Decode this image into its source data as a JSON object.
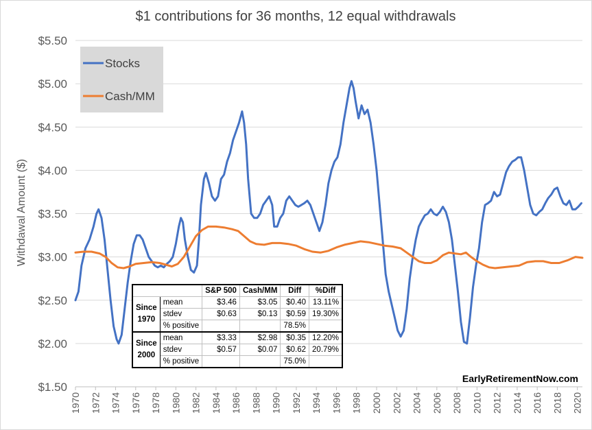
{
  "chart_data": {
    "type": "line",
    "title": "$1 contributions for 36 months, 12 equal withdrawals",
    "xlabel": "",
    "ylabel": "Withdawal Amount ($)",
    "xlim": [
      1970,
      2020.5
    ],
    "ylim": [
      1.5,
      5.5
    ],
    "yticks": [
      "$1.50",
      "$2.00",
      "$2.50",
      "$3.00",
      "$3.50",
      "$4.00",
      "$4.50",
      "$5.00",
      "$5.50"
    ],
    "xticks": [
      "1970",
      "1972",
      "1974",
      "1976",
      "1978",
      "1980",
      "1982",
      "1984",
      "1986",
      "1988",
      "1990",
      "1992",
      "1994",
      "1996",
      "1998",
      "2000",
      "2002",
      "2004",
      "2006",
      "2008",
      "2010",
      "2012",
      "2014",
      "2016",
      "2018",
      "2020"
    ],
    "grid": true,
    "legend_position": "top-left",
    "series": [
      {
        "name": "Stocks",
        "color": "#4472C4",
        "points": [
          [
            1970.0,
            2.5
          ],
          [
            1970.3,
            2.6
          ],
          [
            1970.6,
            2.9
          ],
          [
            1971.0,
            3.1
          ],
          [
            1971.4,
            3.2
          ],
          [
            1971.8,
            3.35
          ],
          [
            1972.1,
            3.5
          ],
          [
            1972.3,
            3.55
          ],
          [
            1972.6,
            3.45
          ],
          [
            1972.9,
            3.2
          ],
          [
            1973.2,
            2.85
          ],
          [
            1973.5,
            2.5
          ],
          [
            1973.8,
            2.2
          ],
          [
            1974.1,
            2.05
          ],
          [
            1974.3,
            2.0
          ],
          [
            1974.6,
            2.1
          ],
          [
            1974.9,
            2.4
          ],
          [
            1975.2,
            2.7
          ],
          [
            1975.5,
            2.95
          ],
          [
            1975.8,
            3.15
          ],
          [
            1976.1,
            3.25
          ],
          [
            1976.4,
            3.25
          ],
          [
            1976.7,
            3.2
          ],
          [
            1977.0,
            3.1
          ],
          [
            1977.3,
            3.0
          ],
          [
            1977.6,
            2.95
          ],
          [
            1977.9,
            2.9
          ],
          [
            1978.2,
            2.88
          ],
          [
            1978.5,
            2.9
          ],
          [
            1978.8,
            2.88
          ],
          [
            1979.1,
            2.92
          ],
          [
            1979.4,
            2.95
          ],
          [
            1979.7,
            3.0
          ],
          [
            1980.0,
            3.15
          ],
          [
            1980.3,
            3.35
          ],
          [
            1980.5,
            3.45
          ],
          [
            1980.7,
            3.4
          ],
          [
            1980.9,
            3.2
          ],
          [
            1981.2,
            3.0
          ],
          [
            1981.5,
            2.85
          ],
          [
            1981.8,
            2.82
          ],
          [
            1982.1,
            2.9
          ],
          [
            1982.3,
            3.2
          ],
          [
            1982.5,
            3.6
          ],
          [
            1982.8,
            3.9
          ],
          [
            1983.0,
            3.97
          ],
          [
            1983.3,
            3.85
          ],
          [
            1983.6,
            3.7
          ],
          [
            1983.9,
            3.65
          ],
          [
            1984.2,
            3.7
          ],
          [
            1984.5,
            3.9
          ],
          [
            1984.8,
            3.95
          ],
          [
            1985.1,
            4.1
          ],
          [
            1985.4,
            4.2
          ],
          [
            1985.7,
            4.35
          ],
          [
            1986.0,
            4.45
          ],
          [
            1986.3,
            4.55
          ],
          [
            1986.6,
            4.68
          ],
          [
            1986.8,
            4.55
          ],
          [
            1987.0,
            4.3
          ],
          [
            1987.2,
            3.9
          ],
          [
            1987.5,
            3.5
          ],
          [
            1987.8,
            3.45
          ],
          [
            1988.1,
            3.45
          ],
          [
            1988.4,
            3.5
          ],
          [
            1988.7,
            3.6
          ],
          [
            1989.0,
            3.65
          ],
          [
            1989.3,
            3.7
          ],
          [
            1989.6,
            3.6
          ],
          [
            1989.8,
            3.35
          ],
          [
            1990.1,
            3.35
          ],
          [
            1990.4,
            3.45
          ],
          [
            1990.7,
            3.5
          ],
          [
            1991.0,
            3.65
          ],
          [
            1991.3,
            3.7
          ],
          [
            1991.6,
            3.65
          ],
          [
            1991.9,
            3.6
          ],
          [
            1992.2,
            3.58
          ],
          [
            1992.5,
            3.6
          ],
          [
            1992.8,
            3.62
          ],
          [
            1993.1,
            3.65
          ],
          [
            1993.4,
            3.6
          ],
          [
            1993.7,
            3.5
          ],
          [
            1994.0,
            3.4
          ],
          [
            1994.3,
            3.3
          ],
          [
            1994.6,
            3.4
          ],
          [
            1994.9,
            3.6
          ],
          [
            1995.2,
            3.85
          ],
          [
            1995.5,
            4.0
          ],
          [
            1995.8,
            4.1
          ],
          [
            1996.1,
            4.15
          ],
          [
            1996.4,
            4.3
          ],
          [
            1996.7,
            4.55
          ],
          [
            1997.0,
            4.75
          ],
          [
            1997.3,
            4.95
          ],
          [
            1997.5,
            5.03
          ],
          [
            1997.7,
            4.95
          ],
          [
            1997.9,
            4.8
          ],
          [
            1998.2,
            4.6
          ],
          [
            1998.5,
            4.75
          ],
          [
            1998.8,
            4.65
          ],
          [
            1999.1,
            4.7
          ],
          [
            1999.4,
            4.55
          ],
          [
            1999.7,
            4.3
          ],
          [
            2000.0,
            4.0
          ],
          [
            2000.3,
            3.6
          ],
          [
            2000.6,
            3.2
          ],
          [
            2000.9,
            2.8
          ],
          [
            2001.2,
            2.6
          ],
          [
            2001.5,
            2.45
          ],
          [
            2001.8,
            2.3
          ],
          [
            2002.1,
            2.15
          ],
          [
            2002.4,
            2.08
          ],
          [
            2002.7,
            2.15
          ],
          [
            2003.0,
            2.4
          ],
          [
            2003.3,
            2.75
          ],
          [
            2003.6,
            3.0
          ],
          [
            2003.9,
            3.2
          ],
          [
            2004.2,
            3.35
          ],
          [
            2004.5,
            3.42
          ],
          [
            2004.8,
            3.48
          ],
          [
            2005.1,
            3.5
          ],
          [
            2005.4,
            3.55
          ],
          [
            2005.7,
            3.5
          ],
          [
            2006.0,
            3.48
          ],
          [
            2006.3,
            3.52
          ],
          [
            2006.6,
            3.58
          ],
          [
            2006.9,
            3.52
          ],
          [
            2007.2,
            3.4
          ],
          [
            2007.5,
            3.2
          ],
          [
            2007.8,
            2.9
          ],
          [
            2008.1,
            2.6
          ],
          [
            2008.4,
            2.25
          ],
          [
            2008.7,
            2.02
          ],
          [
            2009.0,
            2.0
          ],
          [
            2009.3,
            2.3
          ],
          [
            2009.6,
            2.65
          ],
          [
            2009.9,
            2.9
          ],
          [
            2010.2,
            3.1
          ],
          [
            2010.5,
            3.4
          ],
          [
            2010.8,
            3.6
          ],
          [
            2011.1,
            3.62
          ],
          [
            2011.4,
            3.65
          ],
          [
            2011.7,
            3.75
          ],
          [
            2012.0,
            3.7
          ],
          [
            2012.3,
            3.72
          ],
          [
            2012.6,
            3.85
          ],
          [
            2012.9,
            3.98
          ],
          [
            2013.2,
            4.05
          ],
          [
            2013.5,
            4.1
          ],
          [
            2013.8,
            4.12
          ],
          [
            2014.1,
            4.15
          ],
          [
            2014.4,
            4.15
          ],
          [
            2014.7,
            4.0
          ],
          [
            2015.0,
            3.8
          ],
          [
            2015.3,
            3.6
          ],
          [
            2015.6,
            3.5
          ],
          [
            2015.9,
            3.48
          ],
          [
            2016.2,
            3.52
          ],
          [
            2016.5,
            3.55
          ],
          [
            2016.8,
            3.62
          ],
          [
            2017.1,
            3.68
          ],
          [
            2017.4,
            3.72
          ],
          [
            2017.7,
            3.78
          ],
          [
            2018.0,
            3.8
          ],
          [
            2018.3,
            3.7
          ],
          [
            2018.6,
            3.62
          ],
          [
            2018.9,
            3.6
          ],
          [
            2019.2,
            3.65
          ],
          [
            2019.5,
            3.55
          ],
          [
            2019.8,
            3.55
          ],
          [
            2020.1,
            3.58
          ],
          [
            2020.4,
            3.62
          ]
        ]
      },
      {
        "name": "Cash/MM",
        "color": "#ED7D31",
        "points": [
          [
            1970.0,
            3.05
          ],
          [
            1970.8,
            3.06
          ],
          [
            1971.6,
            3.06
          ],
          [
            1972.4,
            3.04
          ],
          [
            1973.0,
            3.0
          ],
          [
            1973.6,
            2.93
          ],
          [
            1974.2,
            2.88
          ],
          [
            1974.8,
            2.87
          ],
          [
            1975.4,
            2.89
          ],
          [
            1976.0,
            2.92
          ],
          [
            1976.8,
            2.93
          ],
          [
            1977.6,
            2.94
          ],
          [
            1978.4,
            2.93
          ],
          [
            1979.0,
            2.91
          ],
          [
            1979.6,
            2.89
          ],
          [
            1980.2,
            2.92
          ],
          [
            1980.8,
            3.0
          ],
          [
            1981.4,
            3.12
          ],
          [
            1982.0,
            3.24
          ],
          [
            1982.6,
            3.31
          ],
          [
            1983.2,
            3.35
          ],
          [
            1984.0,
            3.35
          ],
          [
            1984.8,
            3.34
          ],
          [
            1985.6,
            3.32
          ],
          [
            1986.2,
            3.3
          ],
          [
            1986.8,
            3.24
          ],
          [
            1987.4,
            3.18
          ],
          [
            1988.0,
            3.15
          ],
          [
            1988.8,
            3.14
          ],
          [
            1989.6,
            3.16
          ],
          [
            1990.4,
            3.16
          ],
          [
            1991.2,
            3.15
          ],
          [
            1992.0,
            3.13
          ],
          [
            1992.8,
            3.09
          ],
          [
            1993.6,
            3.06
          ],
          [
            1994.4,
            3.05
          ],
          [
            1995.2,
            3.07
          ],
          [
            1996.0,
            3.11
          ],
          [
            1996.8,
            3.14
          ],
          [
            1997.6,
            3.16
          ],
          [
            1998.4,
            3.18
          ],
          [
            1999.2,
            3.17
          ],
          [
            2000.0,
            3.15
          ],
          [
            2000.8,
            3.13
          ],
          [
            2001.6,
            3.12
          ],
          [
            2002.4,
            3.1
          ],
          [
            2003.0,
            3.05
          ],
          [
            2003.6,
            3.0
          ],
          [
            2004.2,
            2.95
          ],
          [
            2004.8,
            2.93
          ],
          [
            2005.4,
            2.93
          ],
          [
            2006.0,
            2.96
          ],
          [
            2006.6,
            3.02
          ],
          [
            2007.2,
            3.05
          ],
          [
            2007.8,
            3.04
          ],
          [
            2008.4,
            3.03
          ],
          [
            2008.9,
            3.05
          ],
          [
            2009.4,
            3.0
          ],
          [
            2010.0,
            2.95
          ],
          [
            2010.6,
            2.91
          ],
          [
            2011.2,
            2.88
          ],
          [
            2011.8,
            2.87
          ],
          [
            2012.6,
            2.88
          ],
          [
            2013.4,
            2.89
          ],
          [
            2014.2,
            2.9
          ],
          [
            2015.0,
            2.94
          ],
          [
            2015.8,
            2.95
          ],
          [
            2016.6,
            2.95
          ],
          [
            2017.4,
            2.93
          ],
          [
            2018.2,
            2.93
          ],
          [
            2019.0,
            2.96
          ],
          [
            2019.8,
            3.0
          ],
          [
            2020.5,
            2.99
          ]
        ]
      }
    ]
  },
  "stats_table": {
    "headers": [
      "S&P 500",
      "Cash/MM",
      "Diff",
      "%Diff"
    ],
    "groups": [
      {
        "label_line1": "Since",
        "label_line2": "1970",
        "rows": [
          {
            "label": "mean",
            "sp500": "$3.46",
            "cash": "$3.05",
            "diff": "$0.40",
            "pdiff": "13.11%"
          },
          {
            "label": "stdev",
            "sp500": "$0.63",
            "cash": "$0.13",
            "diff": "$0.59",
            "pdiff": "19.30%"
          },
          {
            "label": "% positive",
            "sp500": "",
            "cash": "",
            "diff": "78.5%",
            "pdiff": ""
          }
        ]
      },
      {
        "label_line1": "Since",
        "label_line2": "2000",
        "rows": [
          {
            "label": "mean",
            "sp500": "$3.33",
            "cash": "$2.98",
            "diff": "$0.35",
            "pdiff": "12.20%"
          },
          {
            "label": "stdev",
            "sp500": "$0.57",
            "cash": "$0.07",
            "diff": "$0.62",
            "pdiff": "20.79%"
          },
          {
            "label": "% positive",
            "sp500": "",
            "cash": "",
            "diff": "75.0%",
            "pdiff": ""
          }
        ]
      }
    ]
  },
  "watermark": "EarlyRetirementNow.com"
}
